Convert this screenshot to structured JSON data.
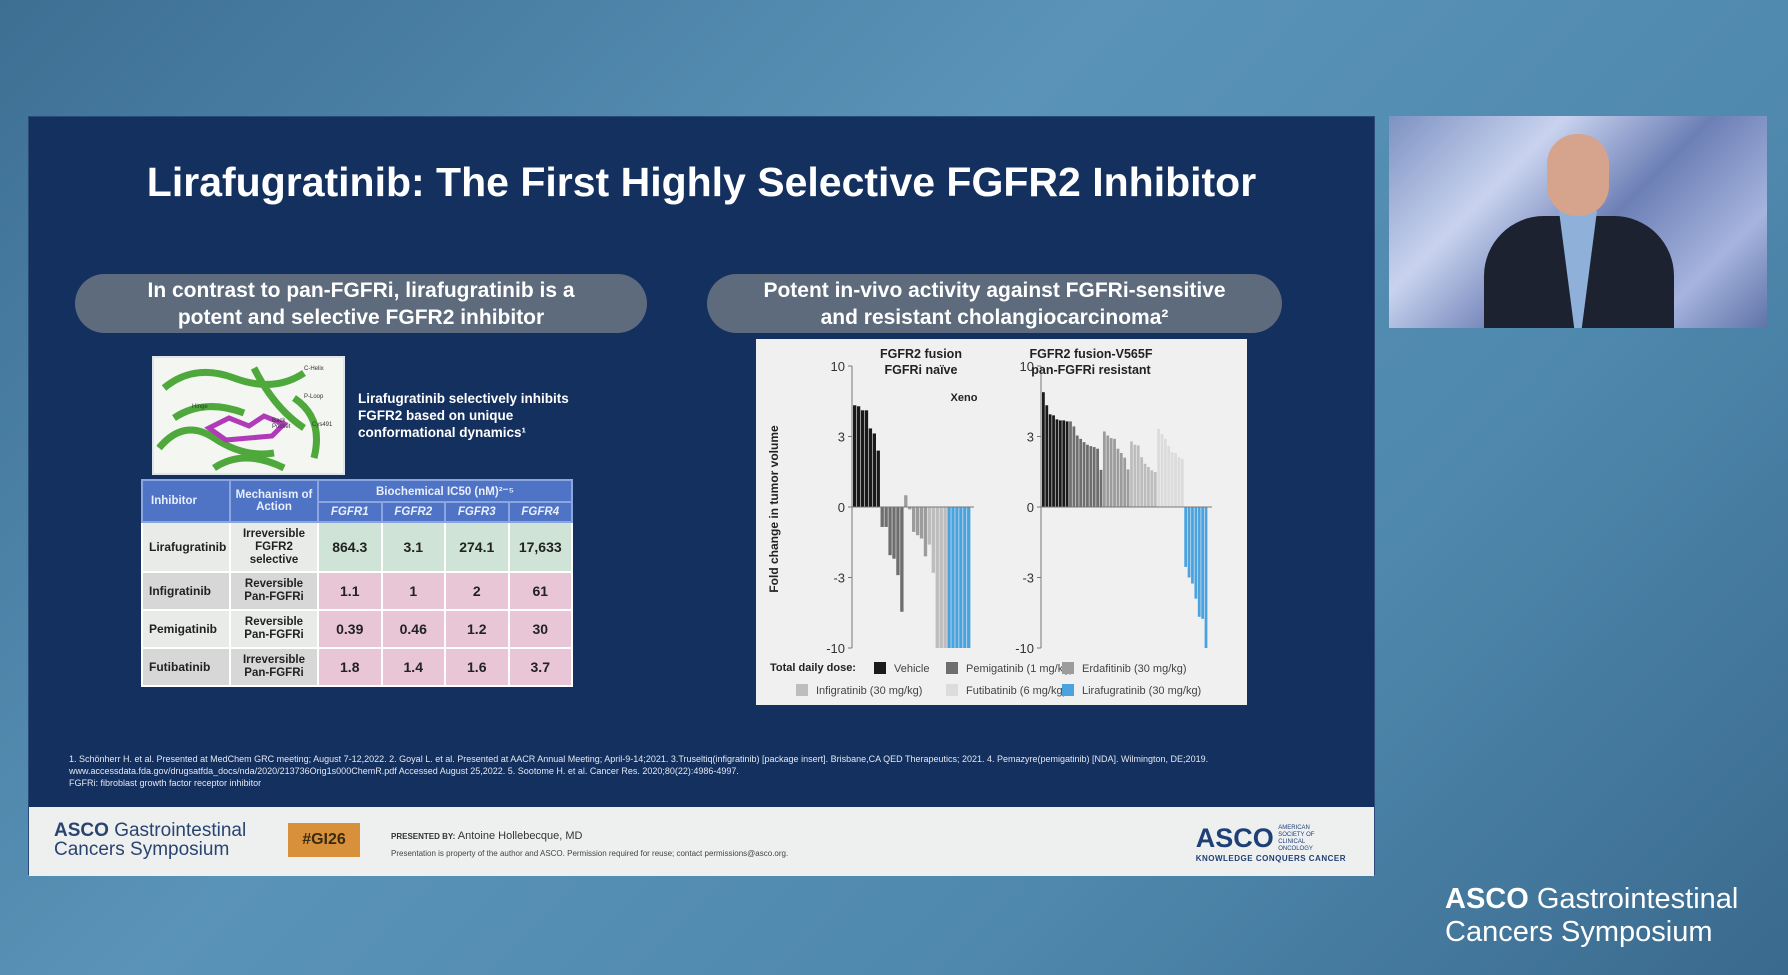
{
  "slide": {
    "title": "Lirafugratinib: The First Highly Selective FGFR2 Inhibitor",
    "left_header": [
      "In contrast to pan-FGFRi, lirafugratinib is a",
      "potent and selective FGFR2 inhibitor"
    ],
    "right_header": [
      "Potent in-vivo activity against FGFRi-sensitive",
      "and resistant cholangiocarcinoma²"
    ],
    "molecule_labels": [
      "C-Helix",
      "P-Loop",
      "Hinge",
      "Back Pocket",
      "Cys491"
    ],
    "caption": [
      "Lirafugratinib selectively inhibits",
      "FGFR2 based on unique",
      "conformational dynamics¹"
    ],
    "table": {
      "headers": {
        "inhibitor": "Inhibitor",
        "mechanism": "Mechanism of Action",
        "ic50": "Biochemical IC50 (nM)²⁻⁵",
        "cols": [
          "FGFR1",
          "FGFR2",
          "FGFR3",
          "FGFR4"
        ]
      },
      "rows": [
        {
          "name": "Lirafugratinib",
          "mech": "Irreversible FGFR2 selective",
          "vals": [
            "864.3",
            "3.1",
            "274.1",
            "17,633"
          ]
        },
        {
          "name": "Infigratinib",
          "mech": "Reversible Pan-FGFRi",
          "vals": [
            "1.1",
            "1",
            "2",
            "61"
          ]
        },
        {
          "name": "Pemigatinib",
          "mech": "Reversible Pan-FGFRi",
          "vals": [
            "0.39",
            "0.46",
            "1.2",
            "30"
          ]
        },
        {
          "name": "Futibatinib",
          "mech": "Irreversible Pan-FGFRi",
          "vals": [
            "1.8",
            "1.4",
            "1.6",
            "3.7"
          ]
        }
      ]
    },
    "footnotes": [
      "1. Schönherr H. et al. Presented at MedChem GRC meeting; August 7-12,2022. 2. Goyal L. et al. Presented at AACR Annual Meeting; April-9-14;2021. 3.Truseltiq(infigratinib) [package insert]. Brisbane,CA QED Therapeutics; 2021. 4. Pemazyre(pemigatinib) [NDA]. Wilmington, DE;2019.",
      "www.accessdata.fda.gov/drugsatfda_docs/nda/2020/213736Orig1s000ChemR.pdf Accessed August 25,2022. 5. Sootome H. et al. Cancer Res. 2020;80(22):4986-4997.",
      "FGFRi: fibroblast growth factor receptor inhibitor"
    ]
  },
  "chart_data": {
    "type": "bar",
    "ylabel": "Fold change in tumor volume",
    "yticks": [
      10,
      3,
      0,
      -3,
      -10
    ],
    "ylim": [
      -10,
      10
    ],
    "annotation": "Xeno",
    "legend_title": "Total daily dose:",
    "legend": [
      {
        "name": "Vehicle",
        "color": "#1a1a1a"
      },
      {
        "name": "Pemigatinib (1 mg/kg)",
        "color": "#6e6e6e"
      },
      {
        "name": "Erdafitinib (30 mg/kg)",
        "color": "#9c9c9c"
      },
      {
        "name": "Infigratinib (30 mg/kg)",
        "color": "#bdbdbd"
      },
      {
        "name": "Futibatinib (6 mg/kg)",
        "color": "#dcdcdc"
      },
      {
        "name": "Lirafugratinib (30 mg/kg)",
        "color": "#4aa3df"
      }
    ],
    "panels": [
      {
        "title": [
          "FGFR2 fusion",
          "FGFRi naïve"
        ],
        "series": [
          {
            "name": "Vehicle",
            "values": [
              6.1,
              6.0,
              5.6,
              5.6,
              3.8,
              3.3,
              2.4
            ]
          },
          {
            "name": "Pemigatinib (1 mg/kg)",
            "values": [
              -0.85,
              -0.85,
              -2.05,
              -2.2,
              -2.9,
              -6.4
            ]
          },
          {
            "name": "Erdafitinib (30 mg/kg)",
            "values": [
              0.5,
              -0.1,
              -1.06,
              -1.2,
              -1.34,
              -2.1
            ]
          },
          {
            "name": "Infigratinib (30 mg/kg)",
            "values": [
              -1.6,
              -2.8,
              -10,
              -10,
              -10
            ]
          },
          {
            "name": "Lirafugratinib (30 mg/kg)",
            "values": [
              -10,
              -10,
              -10,
              -10,
              -10,
              -10
            ]
          }
        ]
      },
      {
        "title": [
          "FGFR2 fusion-V565F",
          "pan-FGFRi resistant"
        ],
        "series": [
          {
            "name": "Vehicle",
            "values": [
              7.4,
              6.1,
              5.2,
              5.1,
              4.7,
              4.6,
              4.6,
              4.5
            ]
          },
          {
            "name": "Pemigatinib (1 mg/kg)",
            "values": [
              4.5,
              4.0,
              3.1,
              2.9,
              2.76,
              2.65,
              2.59,
              2.55,
              2.48,
              1.58
            ]
          },
          {
            "name": "Erdafitinib (30 mg/kg)",
            "values": [
              3.5,
              3.1,
              2.93,
              2.9,
              2.48,
              2.3,
              2.1,
              1.6
            ]
          },
          {
            "name": "Infigratinib (30 mg/kg)",
            "values": [
              2.79,
              2.65,
              2.62,
              2.12,
              1.84,
              1.7,
              1.56,
              1.49
            ]
          },
          {
            "name": "Futibatinib (6 mg/kg)",
            "values": [
              3.76,
              3.26,
              2.9,
              2.6,
              2.33,
              2.3,
              2.12,
              2.05
            ]
          },
          {
            "name": "Lirafugratinib (30 mg/kg)",
            "values": [
              -2.55,
              -3.0,
              -3.6,
              -5.1,
              -6.9,
              -7.1,
              -10
            ]
          }
        ]
      }
    ]
  },
  "footer": {
    "brand_asco": "ASCO",
    "brand_line1": "Gastrointestinal",
    "brand_line2": "Cancers Symposium",
    "hashtag": "#GI26",
    "presented_by_label": "PRESENTED BY:",
    "presenter": "Antoine Hollebecque, MD",
    "rights": "Presentation is property of the author and ASCO. Permission required for reuse; contact permissions@asco.org.",
    "asco_logo": "ASCO",
    "asco_sub": "AMERICAN SOCIETY OF CLINICAL ONCOLOGY",
    "asco_tagline": "KNOWLEDGE CONQUERS CANCER"
  },
  "corner_logo": {
    "asco": "ASCO",
    "line1": "Gastrointestinal",
    "line2": "Cancers Symposium"
  }
}
